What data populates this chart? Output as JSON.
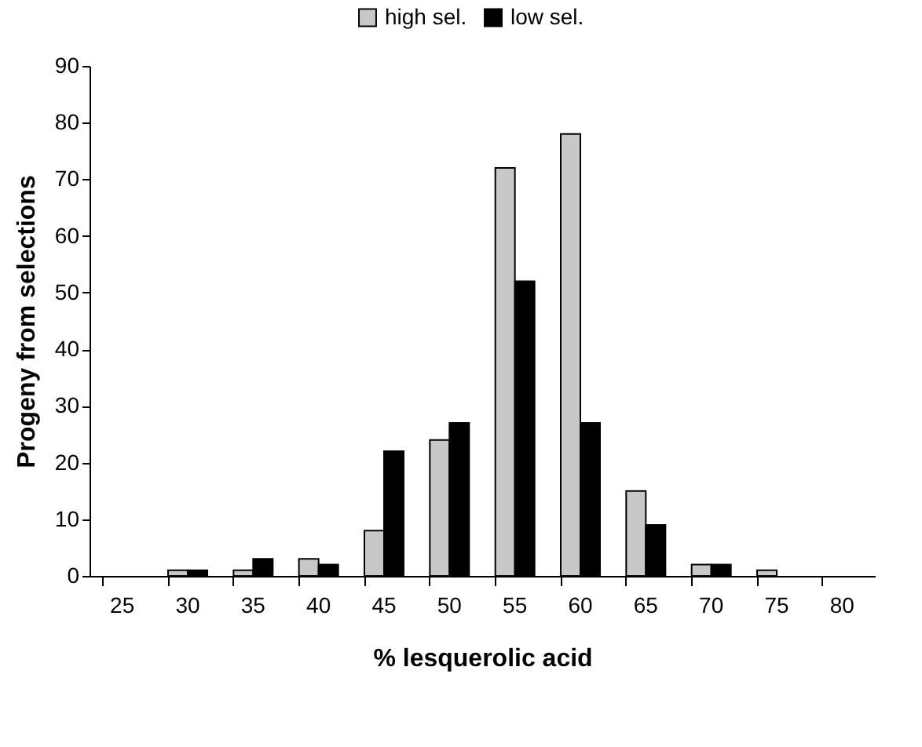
{
  "chart_data": {
    "type": "bar",
    "xlabel": "% lesquerolic acid",
    "ylabel": "Progeny from selections",
    "categories": [
      "25",
      "30",
      "35",
      "40",
      "45",
      "50",
      "55",
      "60",
      "65",
      "70",
      "75",
      "80"
    ],
    "series": [
      {
        "name": "high sel.",
        "color": "#c8c8c8",
        "values": [
          0,
          1,
          1,
          3,
          8,
          24,
          72,
          78,
          15,
          2,
          1,
          0
        ]
      },
      {
        "name": "low sel.",
        "color": "#000000",
        "values": [
          0,
          1,
          3,
          2,
          22,
          27,
          52,
          27,
          9,
          2,
          0,
          0
        ]
      }
    ],
    "ylim": [
      0,
      90
    ],
    "yticks": [
      0,
      10,
      20,
      30,
      40,
      50,
      60,
      70,
      80,
      90
    ],
    "grid": false,
    "legend": "top"
  }
}
